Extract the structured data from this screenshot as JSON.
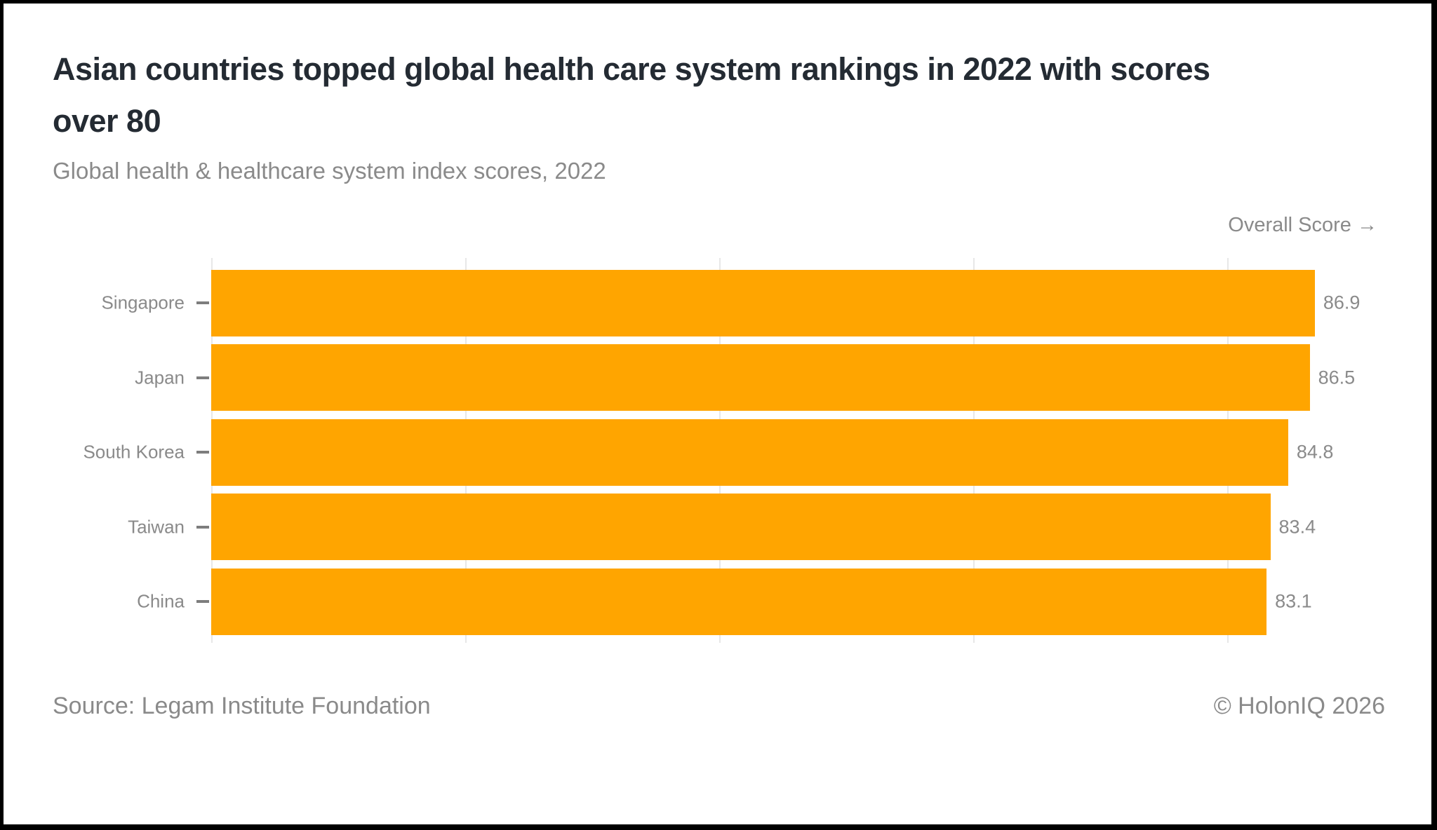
{
  "header": {
    "title_lines": [
      "Asian countries topped global health care system rankings in 2022 with scores",
      "over 80"
    ],
    "subtitle": "Global health & healthcare system index scores, 2022"
  },
  "chart_data": {
    "type": "bar",
    "orientation": "horizontal",
    "title": "Asian countries topped global health care system rankings in 2022 with scores over 80",
    "subtitle": "Global health & healthcare system index scores, 2022",
    "axis_title": "Overall Score →",
    "categories": [
      "Singapore",
      "Japan",
      "South Korea",
      "Taiwan",
      "China"
    ],
    "values": [
      86.9,
      86.5,
      84.8,
      83.4,
      83.1
    ],
    "value_decimals": 1,
    "xlim": [
      0,
      90
    ],
    "gridline_values": [
      0,
      20,
      40,
      60,
      80
    ],
    "grid": "vertical",
    "legend": null,
    "bar_color": "#FFA500"
  },
  "footer": {
    "source": "Source: Legam Institute Foundation",
    "copyright": "© HolonIQ 2026"
  },
  "colors": {
    "bar": "#FFA500",
    "title_text": "#242B33",
    "muted_text": "#8A8A8A",
    "gridline": "#E7E7E7",
    "frame": "#000000"
  }
}
